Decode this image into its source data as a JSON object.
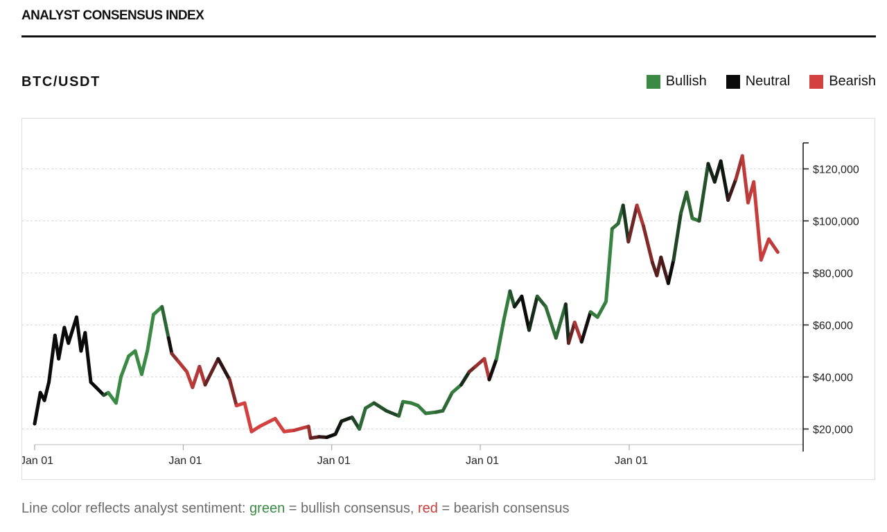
{
  "header": {
    "title": "ANALYST CONSENSUS INDEX"
  },
  "chart_header": {
    "pair": "BTC/USDT"
  },
  "legend": [
    {
      "label": "Bullish",
      "color": "#3a8a45"
    },
    {
      "label": "Neutral",
      "color": "#0a0a0a"
    },
    {
      "label": "Bearish",
      "color": "#d2403f"
    }
  ],
  "caption": {
    "prefix": "Line color reflects analyst sentiment: ",
    "green_word": "green",
    "middle": " = bullish consensus, ",
    "red_word": "red",
    "suffix": " = bearish consensus"
  },
  "chart_data": {
    "type": "line",
    "title": "",
    "xlabel": "",
    "ylabel": "",
    "ylim": [
      14000,
      130000
    ],
    "xlim": [
      "2021-01-01",
      "2026-03-01"
    ],
    "y_ticks": [
      {
        "value": 20000,
        "label": "$20,000"
      },
      {
        "value": 40000,
        "label": "$40,000"
      },
      {
        "value": 60000,
        "label": "$60,000"
      },
      {
        "value": 80000,
        "label": "$80,000"
      },
      {
        "value": 100000,
        "label": "$100,000"
      },
      {
        "value": 120000,
        "label": "$120,000"
      }
    ],
    "x_ticks": [
      {
        "value": "2021-01-01",
        "label": "Jan 01"
      },
      {
        "value": "2022-01-01",
        "label": "Jan 01"
      },
      {
        "value": "2023-01-01",
        "label": "Jan 01"
      },
      {
        "value": "2024-01-01",
        "label": "Jan 01"
      },
      {
        "value": "2025-01-01",
        "label": "Jan 01"
      }
    ],
    "grid": {
      "horizontal": true,
      "style": "dotted"
    },
    "legend_position": "top-right",
    "sentiment_colors": {
      "bull": "#3a8a45",
      "neutral": "#0a0a0a",
      "bear": "#d2403f"
    },
    "points": [
      [
        "2021-01-01",
        22000,
        0
      ],
      [
        "2021-01-15",
        34000,
        0
      ],
      [
        "2021-01-25",
        31000,
        0
      ],
      [
        "2021-02-05",
        38000,
        0
      ],
      [
        "2021-02-20",
        56000,
        0
      ],
      [
        "2021-03-01",
        47000,
        0
      ],
      [
        "2021-03-15",
        59000,
        0
      ],
      [
        "2021-03-25",
        53000,
        0
      ],
      [
        "2021-04-14",
        63000,
        0
      ],
      [
        "2021-04-25",
        50000,
        0
      ],
      [
        "2021-05-05",
        57000,
        0
      ],
      [
        "2021-05-19",
        38000,
        0
      ],
      [
        "2021-06-01",
        36000,
        0
      ],
      [
        "2021-06-20",
        33000,
        0
      ],
      [
        "2021-07-01",
        34000,
        1
      ],
      [
        "2021-07-20",
        30000,
        1
      ],
      [
        "2021-08-01",
        40000,
        1
      ],
      [
        "2021-08-20",
        48000,
        1
      ],
      [
        "2021-09-05",
        50000,
        1
      ],
      [
        "2021-09-21",
        41000,
        1
      ],
      [
        "2021-10-05",
        50000,
        1
      ],
      [
        "2021-10-20",
        64000,
        1
      ],
      [
        "2021-11-10",
        67000,
        1
      ],
      [
        "2021-11-26",
        55000,
        0.4
      ],
      [
        "2021-12-04",
        49000,
        -0.5
      ],
      [
        "2021-12-20",
        46000,
        -0.8
      ],
      [
        "2022-01-10",
        42000,
        -0.9
      ],
      [
        "2022-01-24",
        36000,
        -0.9
      ],
      [
        "2022-02-10",
        44000,
        -0.8
      ],
      [
        "2022-02-24",
        37000,
        -0.8
      ],
      [
        "2022-03-28",
        47000,
        -0.1
      ],
      [
        "2022-04-25",
        39000,
        -0.2
      ],
      [
        "2022-05-12",
        29000,
        -1
      ],
      [
        "2022-06-01",
        30000,
        -1
      ],
      [
        "2022-06-18",
        19000,
        -1
      ],
      [
        "2022-07-08",
        21000,
        -1
      ],
      [
        "2022-08-15",
        24000,
        -1
      ],
      [
        "2022-09-06",
        19000,
        -1
      ],
      [
        "2022-10-01",
        19500,
        -1
      ],
      [
        "2022-11-05",
        21000,
        -0.8
      ],
      [
        "2022-11-10",
        16500,
        -0.6
      ],
      [
        "2022-12-01",
        17000,
        -0.3
      ],
      [
        "2022-12-20",
        16800,
        -0.1
      ],
      [
        "2023-01-10",
        18000,
        0.1
      ],
      [
        "2023-01-25",
        23000,
        0.1
      ],
      [
        "2023-02-20",
        24500,
        0.2
      ],
      [
        "2023-03-10",
        20000,
        0.7
      ],
      [
        "2023-03-25",
        28000,
        0.8
      ],
      [
        "2023-04-15",
        30000,
        0.7
      ],
      [
        "2023-05-15",
        27000,
        0.4
      ],
      [
        "2023-06-15",
        25000,
        0.5
      ],
      [
        "2023-06-25",
        30500,
        0.9
      ],
      [
        "2023-07-15",
        30000,
        0.9
      ],
      [
        "2023-08-01",
        29000,
        0.9
      ],
      [
        "2023-08-20",
        26000,
        0.9
      ],
      [
        "2023-09-15",
        26500,
        0.8
      ],
      [
        "2023-10-01",
        27000,
        0.6
      ],
      [
        "2023-10-24",
        34000,
        0.9
      ],
      [
        "2023-11-15",
        37000,
        0.9
      ],
      [
        "2023-12-05",
        42000,
        -0.4
      ],
      [
        "2023-12-20",
        44000,
        -0.6
      ],
      [
        "2024-01-11",
        47000,
        -0.8
      ],
      [
        "2024-01-23",
        39000,
        -0.9
      ],
      [
        "2024-02-10",
        47000,
        0.8
      ],
      [
        "2024-02-28",
        62000,
        1
      ],
      [
        "2024-03-14",
        73000,
        0.8
      ],
      [
        "2024-03-25",
        67000,
        0.3
      ],
      [
        "2024-04-12",
        71000,
        0
      ],
      [
        "2024-04-30",
        58000,
        0
      ],
      [
        "2024-05-20",
        71000,
        0.5
      ],
      [
        "2024-06-10",
        67000,
        0.8
      ],
      [
        "2024-07-05",
        55000,
        0.8
      ],
      [
        "2024-07-29",
        68000,
        0.7
      ],
      [
        "2024-08-05",
        53000,
        -0.2
      ],
      [
        "2024-08-20",
        61000,
        -0.7
      ],
      [
        "2024-09-06",
        53500,
        -0.9
      ],
      [
        "2024-09-28",
        65000,
        0.8
      ],
      [
        "2024-10-15",
        63000,
        0.9
      ],
      [
        "2024-11-05",
        69000,
        0.9
      ],
      [
        "2024-11-20",
        97000,
        1
      ],
      [
        "2024-12-05",
        99000,
        0.6
      ],
      [
        "2024-12-17",
        106000,
        0.9
      ],
      [
        "2024-12-30",
        92000,
        -0.2
      ],
      [
        "2025-01-20",
        106000,
        -0.8
      ],
      [
        "2025-02-05",
        98000,
        -0.8
      ],
      [
        "2025-02-27",
        84000,
        -0.4
      ],
      [
        "2025-03-10",
        79000,
        -0.4
      ],
      [
        "2025-03-20",
        86000,
        -0.4
      ],
      [
        "2025-04-07",
        76000,
        -0.2
      ],
      [
        "2025-04-20",
        85000,
        0.2
      ],
      [
        "2025-05-08",
        103000,
        0.7
      ],
      [
        "2025-05-22",
        111000,
        0.6
      ],
      [
        "2025-06-05",
        101000,
        0.8
      ],
      [
        "2025-06-22",
        100000,
        0.9
      ],
      [
        "2025-07-14",
        122000,
        0.2
      ],
      [
        "2025-07-30",
        115000,
        0.2
      ],
      [
        "2025-08-14",
        123000,
        0.1
      ],
      [
        "2025-09-01",
        108000,
        0.1
      ],
      [
        "2025-09-20",
        116000,
        -0.6
      ],
      [
        "2025-10-06",
        125000,
        -0.9
      ],
      [
        "2025-10-20",
        107000,
        -0.9
      ],
      [
        "2025-11-03",
        115000,
        -0.9
      ],
      [
        "2025-11-21",
        85000,
        -1
      ],
      [
        "2025-12-10",
        93000,
        -0.9
      ],
      [
        "2026-01-01",
        88000,
        -0.9
      ]
    ]
  }
}
